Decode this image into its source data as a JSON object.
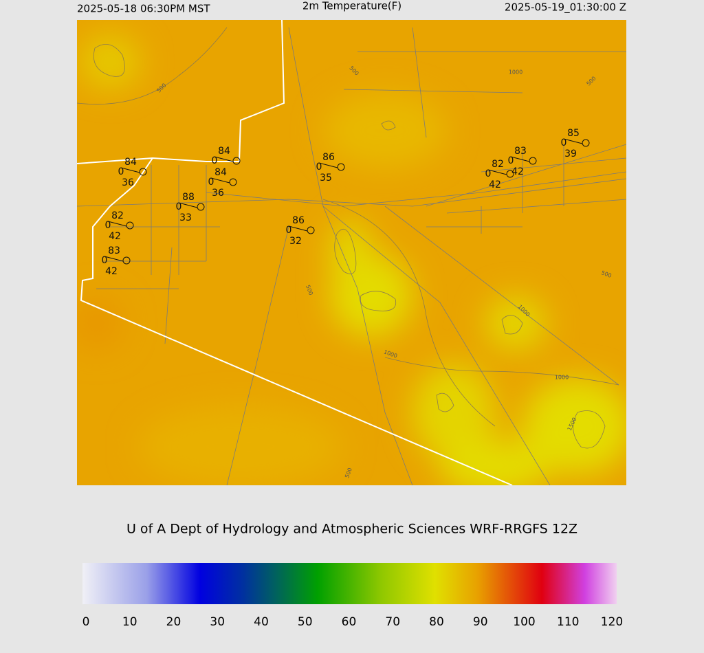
{
  "header": {
    "valid_local": "2025-05-18 06:30PM MST",
    "title": "2m Temperature(F)",
    "valid_utc": "2025-05-19_01:30:00 Z"
  },
  "stations": [
    {
      "temperature": 84,
      "wind": 0,
      "dewpoint": 36
    },
    {
      "temperature": 84,
      "wind": 0
    },
    {
      "temperature": 84,
      "wind": 0,
      "dewpoint": 36
    },
    {
      "temperature": 88,
      "wind": 0,
      "dewpoint": 33
    },
    {
      "temperature": 86,
      "wind": 0,
      "dewpoint": 35
    },
    {
      "temperature": 86,
      "wind": 0,
      "dewpoint": 32
    },
    {
      "temperature": 82,
      "wind": 0,
      "dewpoint": 42
    },
    {
      "temperature": 83,
      "wind": 0,
      "dewpoint": 42
    },
    {
      "temperature": 82,
      "wind": 0,
      "dewpoint": 42
    },
    {
      "temperature": 83,
      "wind": 0,
      "dewpoint": 42
    },
    {
      "temperature": 85,
      "wind": 0,
      "dewpoint": 39
    }
  ],
  "contour_labels": [
    500,
    500,
    1000,
    500,
    500,
    1000,
    1000,
    1000,
    1500,
    500,
    500
  ],
  "credit": "U of A Dept of Hydrology and Atmospheric Sciences WRF-RRGFS 12Z",
  "colorbar": {
    "ticks": [
      0,
      10,
      20,
      30,
      40,
      50,
      60,
      70,
      80,
      90,
      100,
      110,
      120
    ]
  }
}
